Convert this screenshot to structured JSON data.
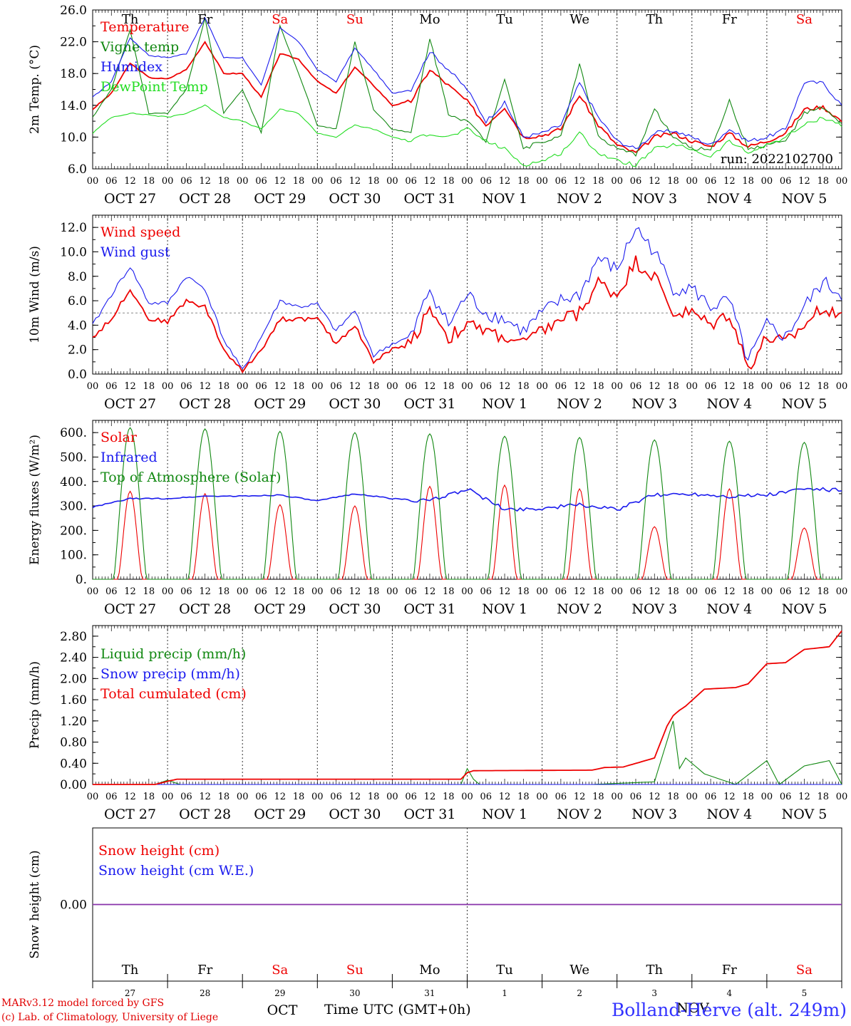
{
  "colors": {
    "red": "#ee0000",
    "green": "#118811",
    "blue": "#1a1aee",
    "lightgreen": "#22dd22",
    "purple": "#8833aa",
    "gray": "#888888"
  },
  "day_names": [
    "Th",
    "Fr",
    "Sa",
    "Su",
    "Mo",
    "Tu",
    "We",
    "Th",
    "Fr",
    "Sa"
  ],
  "weekend_days": [
    2,
    3,
    9
  ],
  "day_labels": [
    "OCT 27",
    "OCT 28",
    "OCT 29",
    "OCT 30",
    "OCT 31",
    "NOV  1",
    "NOV  2",
    "NOV  3",
    "NOV  4",
    "NOV  5"
  ],
  "hour_labels": [
    "00",
    "06",
    "12",
    "18"
  ],
  "bottom_day_numbers": [
    "27",
    "28",
    "29",
    "30",
    "31",
    "1",
    "2",
    "3",
    "4",
    "5"
  ],
  "bottom_month_labels": [
    "OCT",
    "NOV"
  ],
  "footer": {
    "model": "MARv3.12 model forced by GFS",
    "credit": "(c) Lab. of Climatology, University of Liege",
    "time_axis_title": "Time UTC (GMT+0h)",
    "station": "Bolland-Herve (alt. 249m)"
  },
  "chart_data": [
    {
      "type": "line",
      "ylabel": "2m Temp. (°C)",
      "ylim": [
        6,
        26
      ],
      "yticks": [
        "6.0",
        "10.0",
        "14.0",
        "18.0",
        "22.0",
        "26.0"
      ],
      "annotation": "run: 2022102700",
      "x_unit": "hours since OCT 27 00 UTC",
      "series": [
        {
          "name": "Temperature",
          "color": "red",
          "x": [
            0,
            6,
            12,
            18,
            24,
            30,
            36,
            42,
            48,
            54,
            60,
            66,
            72,
            78,
            84,
            90,
            96,
            102,
            108,
            114,
            120,
            126,
            132,
            138,
            144,
            150,
            156,
            162,
            168,
            174,
            180,
            186,
            192,
            198,
            204,
            210,
            216,
            222,
            228,
            234,
            240
          ],
          "values": [
            13.5,
            15.5,
            19.3,
            17.5,
            17.3,
            18.5,
            22.0,
            18.0,
            18.0,
            15.0,
            20.5,
            19.8,
            17.0,
            15.5,
            18.8,
            16.5,
            14.0,
            14.5,
            18.5,
            16.5,
            14.5,
            11.5,
            13.8,
            10.0,
            10.2,
            11.0,
            15.3,
            11.5,
            9.0,
            8.0,
            10.0,
            10.5,
            9.5,
            8.8,
            10.5,
            8.8,
            9.5,
            10.5,
            13.5,
            13.8,
            12.0
          ]
        },
        {
          "name": "Vigne temp",
          "color": "green",
          "x": [
            0,
            6,
            12,
            18,
            24,
            30,
            36,
            42,
            48,
            54,
            60,
            66,
            72,
            78,
            84,
            90,
            96,
            102,
            108,
            114,
            120,
            126,
            132,
            138,
            144,
            150,
            156,
            162,
            168,
            174,
            180,
            186,
            192,
            198,
            204,
            210,
            216,
            222,
            228,
            234,
            240
          ],
          "values": [
            12.5,
            16.0,
            23.5,
            13.0,
            13.0,
            16.0,
            25.0,
            13.0,
            16.0,
            10.5,
            24.0,
            18.0,
            11.5,
            11.0,
            22.0,
            13.5,
            11.0,
            10.5,
            22.5,
            13.0,
            12.0,
            9.5,
            17.5,
            8.5,
            9.5,
            10.0,
            19.3,
            10.0,
            8.5,
            7.8,
            13.5,
            10.0,
            8.5,
            8.5,
            14.5,
            8.5,
            9.0,
            9.5,
            13.0,
            13.7,
            11.5
          ]
        },
        {
          "name": "Humidex",
          "color": "blue",
          "x": [
            0,
            6,
            12,
            18,
            24,
            30,
            36,
            42,
            48,
            54,
            60,
            66,
            72,
            78,
            84,
            90,
            96,
            102,
            108,
            114,
            120,
            126,
            132,
            138,
            144,
            150,
            156,
            162,
            168,
            174,
            180,
            186,
            192,
            198,
            204,
            210,
            216,
            222,
            228,
            234,
            240
          ],
          "values": [
            15.0,
            17.0,
            22.5,
            20.3,
            20.0,
            20.5,
            25.0,
            20.0,
            20.0,
            16.5,
            23.8,
            22.0,
            18.5,
            17.0,
            21.2,
            18.5,
            15.5,
            16.0,
            20.8,
            18.5,
            16.0,
            12.0,
            14.3,
            10.0,
            10.5,
            11.5,
            16.8,
            12.5,
            9.5,
            8.5,
            10.5,
            10.8,
            10.0,
            9.0,
            11.0,
            9.5,
            10.0,
            11.0,
            16.9,
            16.8,
            14.0
          ]
        },
        {
          "name": "DewPoint Temp",
          "color": "lightgreen",
          "x": [
            0,
            6,
            12,
            18,
            24,
            30,
            36,
            42,
            48,
            54,
            60,
            66,
            72,
            78,
            84,
            90,
            96,
            102,
            108,
            114,
            120,
            126,
            132,
            138,
            144,
            150,
            156,
            162,
            168,
            174,
            180,
            186,
            192,
            198,
            204,
            210,
            216,
            222,
            228,
            234,
            240
          ],
          "values": [
            10.5,
            12.5,
            13.0,
            12.8,
            12.5,
            13.0,
            14.0,
            12.5,
            12.0,
            11.0,
            13.5,
            13.0,
            10.5,
            10.0,
            11.5,
            11.0,
            10.0,
            9.5,
            10.5,
            10.0,
            11.0,
            9.5,
            8.5,
            6.5,
            7.0,
            8.0,
            10.5,
            8.0,
            7.0,
            6.5,
            8.5,
            9.0,
            8.5,
            7.5,
            9.5,
            8.0,
            9.0,
            10.0,
            11.5,
            12.5,
            11.5
          ]
        }
      ]
    },
    {
      "type": "line",
      "ylabel": "10m Wind (m/s)",
      "ylim": [
        0,
        13
      ],
      "yticks": [
        "0.0",
        "2.0",
        "4.0",
        "6.0",
        "8.0",
        "10.0",
        "12.0"
      ],
      "reference_line": 5,
      "series": [
        {
          "name": "Wind speed",
          "color": "red",
          "x": [
            0,
            6,
            12,
            18,
            24,
            30,
            36,
            42,
            48,
            54,
            60,
            66,
            72,
            78,
            84,
            90,
            96,
            102,
            108,
            114,
            120,
            126,
            132,
            138,
            144,
            150,
            156,
            162,
            168,
            174,
            180,
            186,
            192,
            198,
            204,
            210,
            216,
            222,
            228,
            234,
            240
          ],
          "values": [
            3.0,
            4.5,
            7.0,
            4.5,
            4.3,
            6.0,
            5.5,
            2.0,
            0.2,
            2.0,
            4.5,
            4.5,
            4.5,
            2.5,
            4.0,
            1.0,
            2.0,
            2.5,
            5.5,
            3.0,
            4.0,
            3.5,
            3.0,
            2.5,
            3.5,
            4.5,
            5.0,
            7.5,
            6.5,
            9.2,
            8.0,
            5.0,
            5.0,
            4.0,
            5.0,
            0.5,
            3.0,
            2.5,
            4.0,
            5.5,
            5.0
          ]
        },
        {
          "name": "Wind gust",
          "color": "blue",
          "x": [
            0,
            6,
            12,
            18,
            24,
            30,
            36,
            42,
            48,
            54,
            60,
            66,
            72,
            78,
            84,
            90,
            96,
            102,
            108,
            114,
            120,
            126,
            132,
            138,
            144,
            150,
            156,
            162,
            168,
            174,
            180,
            186,
            192,
            198,
            204,
            210,
            216,
            222,
            228,
            234,
            240
          ],
          "values": [
            4.0,
            6.5,
            8.8,
            5.8,
            5.8,
            8.0,
            7.0,
            2.8,
            0.3,
            3.0,
            6.0,
            5.5,
            5.7,
            3.5,
            5.2,
            1.5,
            2.5,
            3.0,
            7.0,
            4.0,
            6.5,
            5.0,
            4.5,
            3.5,
            5.0,
            6.0,
            6.5,
            9.5,
            8.5,
            12.0,
            10.0,
            7.0,
            7.0,
            5.5,
            6.0,
            1.0,
            4.0,
            3.0,
            5.5,
            7.5,
            6.5
          ]
        }
      ]
    },
    {
      "type": "line",
      "ylabel": "Energy fluxes (W/m²)",
      "ylim": [
        0,
        650
      ],
      "yticks": [
        "0.",
        "100.",
        "200.",
        "300.",
        "400.",
        "500.",
        "600."
      ],
      "series": [
        {
          "name": "Solar",
          "color": "red",
          "peaks": [
            360,
            350,
            305,
            300,
            380,
            385,
            370,
            215,
            370,
            210
          ]
        },
        {
          "name": "Infrared",
          "color": "blue",
          "x": [
            0,
            12,
            24,
            36,
            48,
            60,
            72,
            84,
            96,
            108,
            120,
            132,
            144,
            156,
            168,
            180,
            192,
            204,
            216,
            228,
            240
          ],
          "values": [
            295,
            330,
            330,
            340,
            340,
            345,
            320,
            350,
            330,
            320,
            370,
            285,
            290,
            305,
            285,
            345,
            350,
            340,
            345,
            370,
            365
          ]
        },
        {
          "name": "Top of Atmosphere (Solar)",
          "color": "green",
          "peaks": [
            620,
            615,
            605,
            600,
            595,
            585,
            580,
            570,
            565,
            560
          ]
        }
      ]
    },
    {
      "type": "line",
      "ylabel": "Precip (mm/h)",
      "ylim": [
        0,
        3.0
      ],
      "yticks": [
        "0.00",
        "0.40",
        "0.80",
        "1.20",
        "1.60",
        "2.00",
        "2.40",
        "2.80"
      ],
      "series": [
        {
          "name": "Liquid precip (mm/h)",
          "color": "green",
          "x": [
            0,
            20,
            24,
            28,
            118,
            120,
            122,
            124,
            160,
            168,
            180,
            186,
            188,
            190,
            196,
            206,
            216,
            220,
            228,
            236,
            240
          ],
          "values": [
            0,
            0,
            0.08,
            0,
            0,
            0.3,
            0.1,
            0,
            0,
            0.02,
            0.05,
            1.2,
            0.3,
            0.5,
            0.2,
            0,
            0.45,
            0,
            0.35,
            0.45,
            0
          ]
        },
        {
          "name": "Snow precip (mm/h)",
          "color": "blue",
          "x": [
            0,
            240
          ],
          "values": [
            0,
            0
          ]
        },
        {
          "name": "Total cumulated (cm)",
          "color": "red",
          "x": [
            0,
            20,
            24,
            27,
            118,
            120,
            122,
            160,
            164,
            170,
            180,
            184,
            186,
            188,
            190,
            196,
            206,
            210,
            216,
            222,
            228,
            236,
            240
          ],
          "values": [
            0,
            0,
            0.06,
            0.1,
            0.1,
            0.22,
            0.26,
            0.27,
            0.32,
            0.33,
            0.5,
            1.1,
            1.3,
            1.4,
            1.48,
            1.8,
            1.83,
            1.9,
            2.28,
            2.3,
            2.55,
            2.6,
            2.9
          ]
        }
      ]
    },
    {
      "type": "line",
      "ylabel": "Snow height (cm)",
      "ylim": [
        -1,
        1
      ],
      "yticks": [
        "0.00"
      ],
      "series": [
        {
          "name": "Snow height (cm)",
          "color": "red",
          "x": [
            0,
            240
          ],
          "values": [
            0,
            0
          ]
        },
        {
          "name": "Snow height (cm W.E.)",
          "color": "blue",
          "x": [
            0,
            240
          ],
          "values": [
            0,
            0
          ]
        }
      ]
    }
  ]
}
